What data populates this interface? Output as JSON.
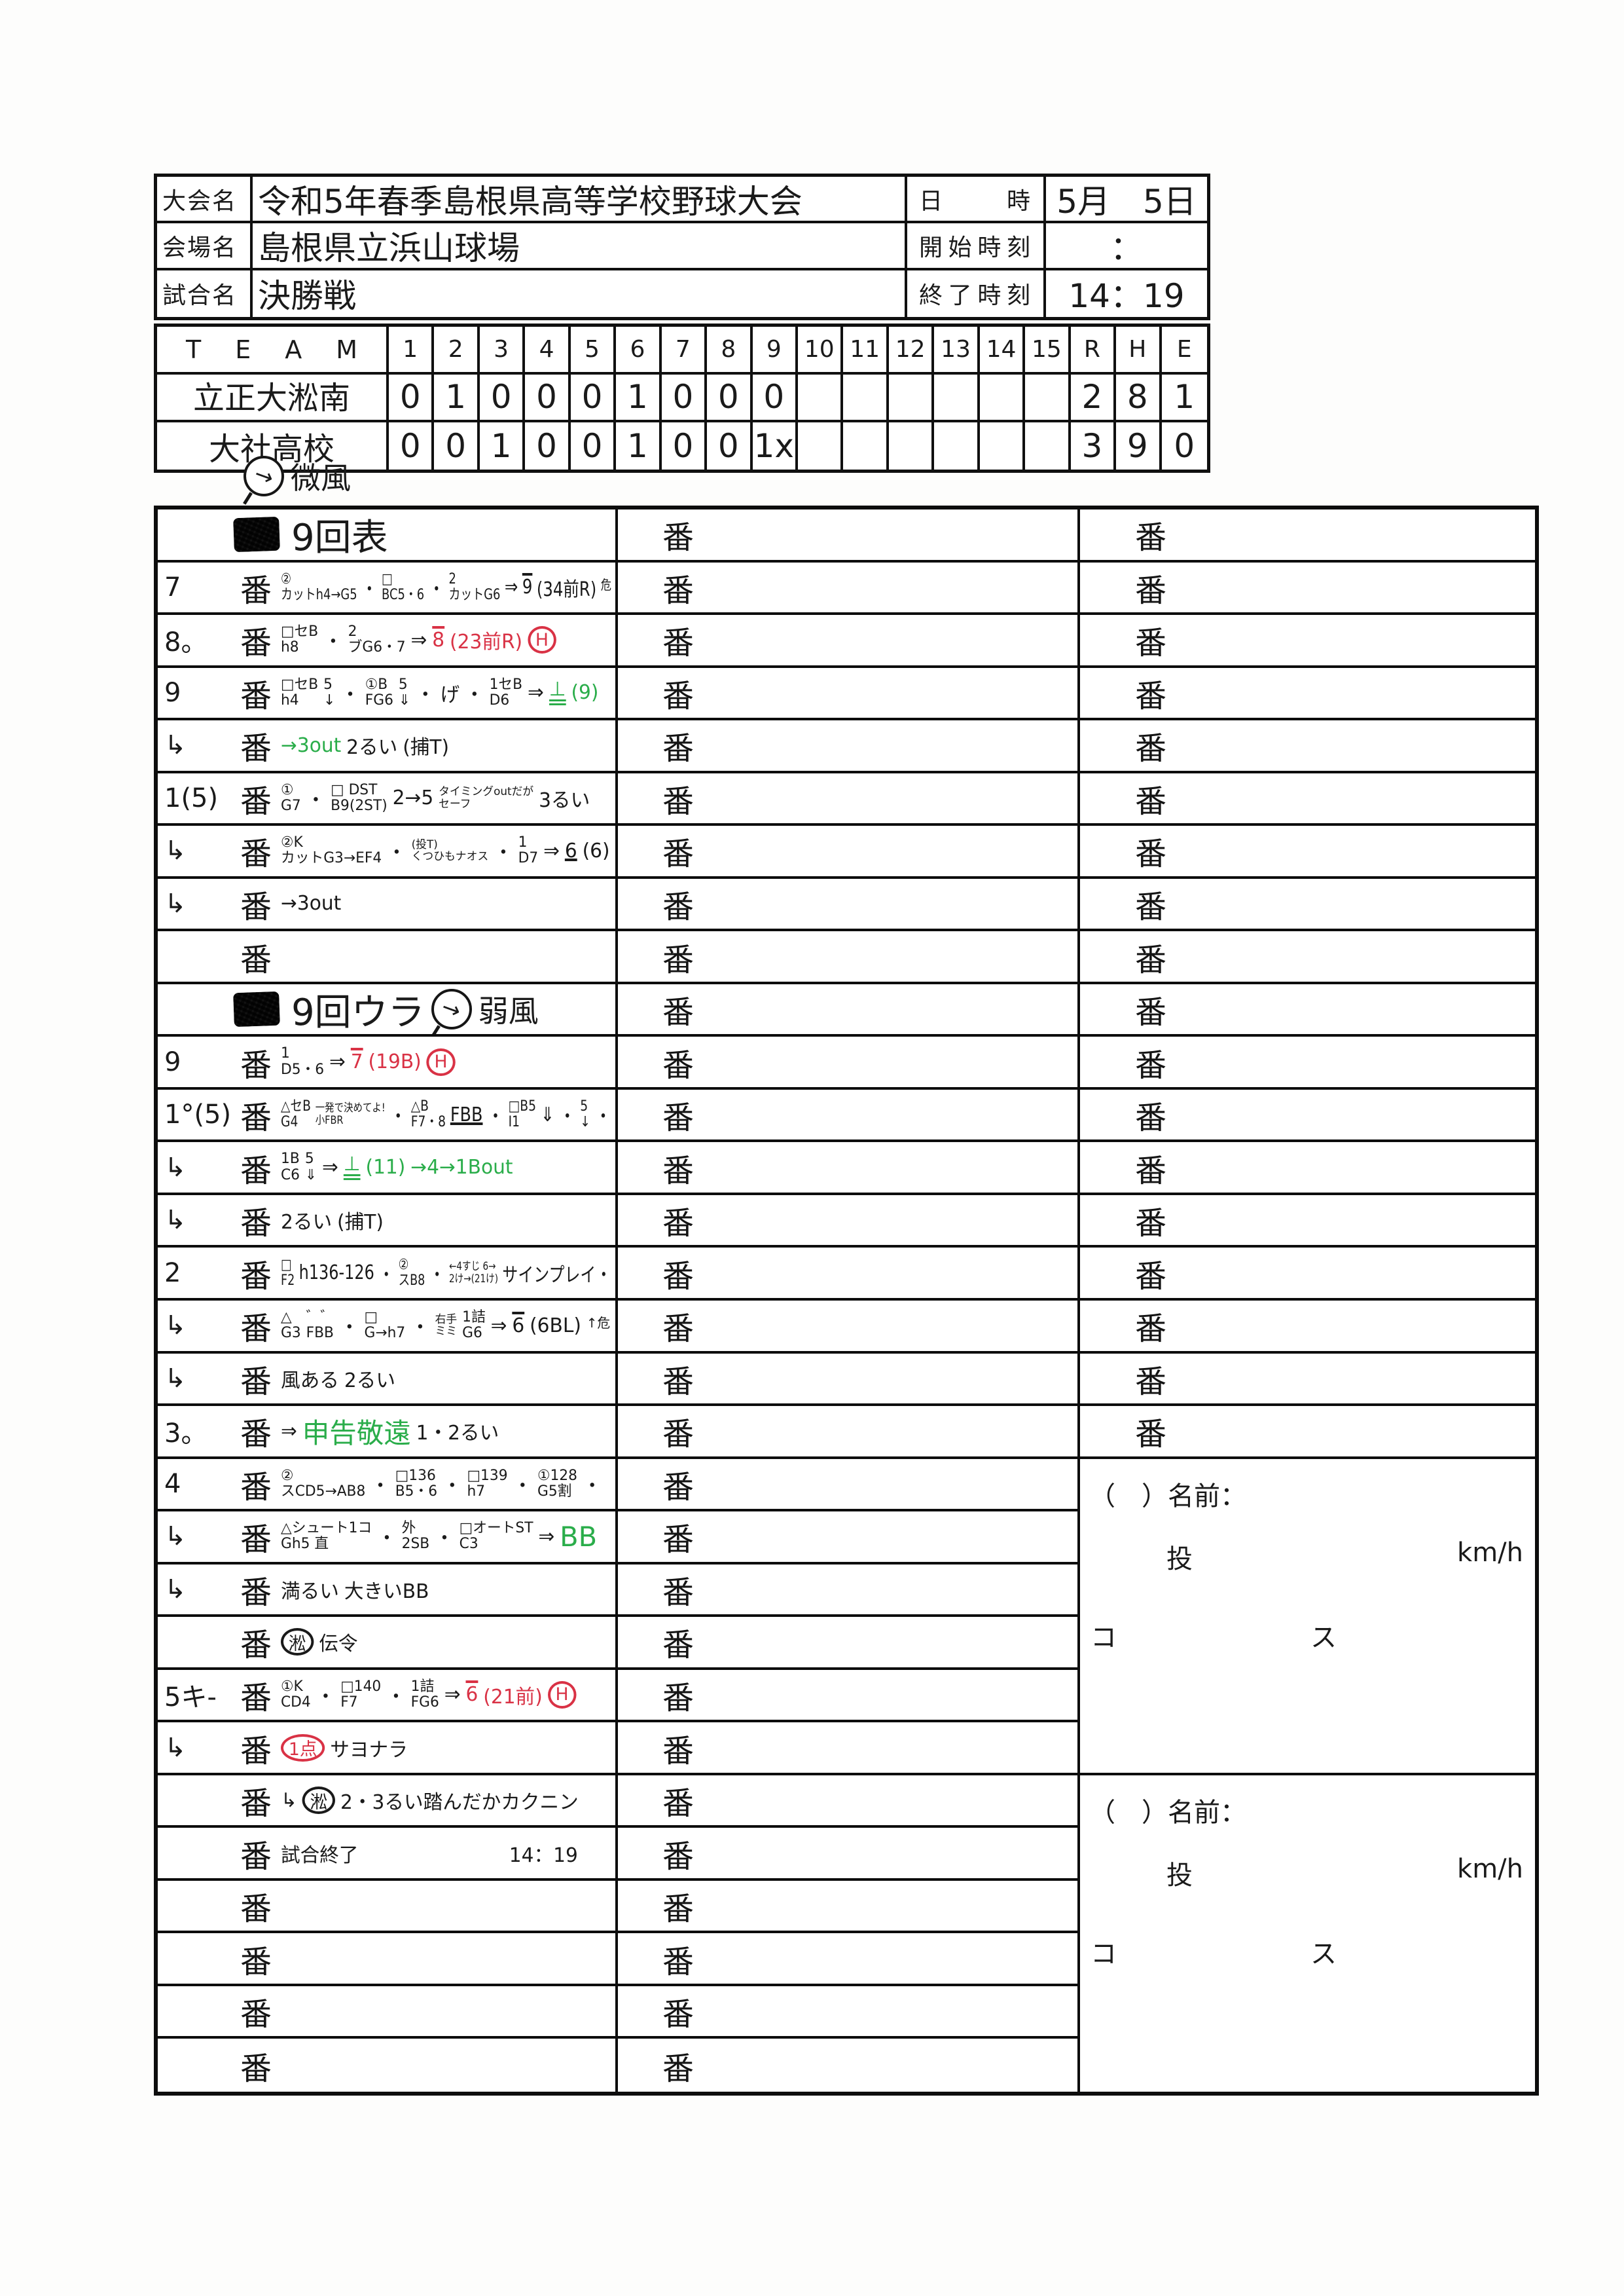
{
  "colors": {
    "red": "#d93245",
    "green": "#2aad4a",
    "ink": "#1a1a1a"
  },
  "labels": {
    "ban": "番"
  },
  "annotation": {
    "arrow": "→",
    "wind": "微風"
  },
  "info_table": {
    "rows": [
      {
        "label": "大会名",
        "value": "令和5年春季島根県高等学校野球大会",
        "label2": "日　　時",
        "value2": "5月　5日"
      },
      {
        "label": "会場名",
        "value": "島根県立浜山球場",
        "label2": "開始時刻",
        "value2": "："
      },
      {
        "label": "試合名",
        "value": "決勝戦",
        "label2": "終了時刻",
        "value2": "14：19"
      }
    ]
  },
  "score_table": {
    "team_header": "TEAM",
    "columns": [
      "1",
      "2",
      "3",
      "4",
      "5",
      "6",
      "7",
      "8",
      "9",
      "10",
      "11",
      "12",
      "13",
      "14",
      "15",
      "R",
      "H",
      "E"
    ],
    "teams": [
      {
        "name": "立正大淞南",
        "underline": true,
        "scores": [
          "0",
          "1",
          "0",
          "0",
          "0",
          "1",
          "0",
          "0",
          "0",
          "",
          "",
          "",
          "",
          "",
          "",
          "2",
          "8",
          "1"
        ]
      },
      {
        "name": "大社高校",
        "underline": false,
        "scores": [
          "0",
          "0",
          "1",
          "0",
          "0",
          "1",
          "0",
          "0",
          "1x",
          "",
          "",
          "",
          "",
          "",
          "",
          "3",
          "9",
          "0"
        ]
      }
    ]
  },
  "pitcher_block": {
    "name_line": "（　）名前：",
    "pitch": "投",
    "unit": "km/h",
    "course_left": "コ",
    "course_right": "ス"
  },
  "big_table": {
    "right_ban_rows": 18,
    "rows": [
      {
        "type": "sec",
        "title": "9回表",
        "wind": ""
      },
      {
        "n": "7",
        "segs": [
          {
            "top": "②",
            "bot": "カットh4→G5"
          },
          {
            "t": "・"
          },
          {
            "top": "□",
            "bot": "BC5・6"
          },
          {
            "t": "・"
          },
          {
            "top": "2",
            "bot": "カットG6"
          },
          {
            "t": "⇒"
          },
          {
            "t": "9",
            "bar": true
          },
          {
            "t": "(34前R)"
          },
          {
            "t": "危",
            "sup": true
          }
        ]
      },
      {
        "n": "8。",
        "segs": [
          {
            "top": "□セB",
            "bot": "h8"
          },
          {
            "t": "・"
          },
          {
            "top": "2",
            "bot": "ブG6・7"
          },
          {
            "t": "⇒"
          },
          {
            "t": "8",
            "c": "r",
            "bar": true
          },
          {
            "t": "(23前R)",
            "c": "r"
          },
          {
            "t": "H",
            "c": "r",
            "circ": true
          }
        ]
      },
      {
        "n": "9",
        "segs": [
          {
            "top": "□セB",
            "bot": "h4"
          },
          {
            "top": "5",
            "bot": "↓"
          },
          {
            "t": "・"
          },
          {
            "top": "①B",
            "bot": "FG6"
          },
          {
            "top": "5",
            "bot": "⇓"
          },
          {
            "t": "・"
          },
          {
            "t": "げ"
          },
          {
            "t": "・"
          },
          {
            "top": "1セB",
            "bot": "D6"
          },
          {
            "t": "⇒"
          },
          {
            "t": "⊥",
            "c": "g",
            "du": true
          },
          {
            "t": "(9)",
            "c": "g"
          }
        ]
      },
      {
        "n": "↳",
        "segs": [
          {
            "t": "→3out",
            "c": "g"
          },
          {
            "t": "2るい"
          },
          {
            "t": "(捕T)"
          }
        ]
      },
      {
        "n": "1(5)",
        "segs": [
          {
            "top": "①",
            "bot": "G7"
          },
          {
            "t": "・"
          },
          {
            "top": "□ DST",
            "bot": "B9(2ST)"
          },
          {
            "t": "2→5"
          },
          {
            "top": "タイミングoutだが",
            "bot": "セーフ",
            "sm": true
          },
          {
            "t": "3るい"
          }
        ]
      },
      {
        "n": "↳",
        "segs": [
          {
            "top": "②K",
            "bot": "カットG3→EF4"
          },
          {
            "t": "・"
          },
          {
            "top": "(投T)",
            "bot": "くつひもナオス",
            "sm": true
          },
          {
            "t": "・"
          },
          {
            "top": "1",
            "bot": "D7"
          },
          {
            "t": "⇒"
          },
          {
            "t": "6",
            "und": true
          },
          {
            "t": "(6)"
          }
        ]
      },
      {
        "n": "↳",
        "segs": [
          {
            "t": "→3out"
          }
        ]
      },
      {
        "n": "",
        "segs": []
      },
      {
        "type": "sec",
        "title": "9回ウラ",
        "wind": "弱風"
      },
      {
        "n": "9",
        "segs": [
          {
            "top": "1",
            "bot": "D5・6"
          },
          {
            "t": "⇒"
          },
          {
            "t": "7",
            "c": "r",
            "bar": true
          },
          {
            "t": "(19B)",
            "c": "r"
          },
          {
            "t": "H",
            "c": "r",
            "circ": true
          }
        ]
      },
      {
        "n": "1°(5)",
        "segs": [
          {
            "top": "△セB",
            "bot": "G4"
          },
          {
            "top": "一発で決めてよ!",
            "bot": "小FBR",
            "sm": true
          },
          {
            "t": "・"
          },
          {
            "top": "△B",
            "bot": "F7・8"
          },
          {
            "t": "FBB",
            "und": true
          },
          {
            "t": "・"
          },
          {
            "top": "□B5",
            "bot": "I1"
          },
          {
            "t": "⇓"
          },
          {
            "t": "・"
          },
          {
            "top": "5",
            "bot": "↓"
          },
          {
            "t": "・"
          }
        ]
      },
      {
        "n": "↳",
        "segs": [
          {
            "top": "1B",
            "bot": "C6"
          },
          {
            "top": "5",
            "bot": "⇓"
          },
          {
            "t": "⇒"
          },
          {
            "t": "⊥",
            "c": "g",
            "du": true
          },
          {
            "t": "(11)",
            "c": "g"
          },
          {
            "t": "→4→1Bout",
            "c": "g"
          }
        ]
      },
      {
        "n": "↳",
        "segs": [
          {
            "t": "2るい"
          },
          {
            "t": "(捕T)"
          }
        ]
      },
      {
        "n": "2",
        "segs": [
          {
            "top": "□",
            "bot": "F2"
          },
          {
            "t": "h136-126"
          },
          {
            "t": "・"
          },
          {
            "top": "②",
            "bot": "スB8"
          },
          {
            "t": "・"
          },
          {
            "top": "←4すじ 6→",
            "bot": "2け→(21け)",
            "sm": true
          },
          {
            "t": "サインプレイ・"
          }
        ]
      },
      {
        "n": "↳",
        "segs": [
          {
            "top": "△",
            "bot": "G3"
          },
          {
            "top": "゛゛",
            "bot": "FBB"
          },
          {
            "t": "・"
          },
          {
            "top": "□",
            "bot": "G→h7"
          },
          {
            "t": "・"
          },
          {
            "top": "右手",
            "bot": "ミミ",
            "sm": true
          },
          {
            "top": "1詰",
            "bot": "G6"
          },
          {
            "t": "⇒"
          },
          {
            "t": "6",
            "bar": true
          },
          {
            "t": "(6BL)"
          },
          {
            "t": "↑危",
            "sup": true
          }
        ]
      },
      {
        "n": "↳",
        "segs": [
          {
            "t": "風ある"
          },
          {
            "t": "2るい"
          }
        ]
      },
      {
        "n": "3。",
        "segs": [
          {
            "t": "⇒"
          },
          {
            "t": "申告敬遠",
            "c": "g",
            "big": true
          },
          {
            "t": "1・2るい"
          }
        ]
      },
      {
        "n": "4",
        "segs": [
          {
            "top": "②",
            "bot": "スCD5→AB8"
          },
          {
            "t": "・"
          },
          {
            "top": "□136",
            "bot": "B5・6"
          },
          {
            "t": "・"
          },
          {
            "top": "□139",
            "bot": "h7"
          },
          {
            "t": "・"
          },
          {
            "top": "①128",
            "bot": "G5割"
          },
          {
            "t": "・"
          }
        ]
      },
      {
        "n": "↳",
        "segs": [
          {
            "top": "△シュート1コ",
            "bot": "Gh5 直"
          },
          {
            "t": "・"
          },
          {
            "top": "外",
            "bot": "2SB"
          },
          {
            "t": "・"
          },
          {
            "top": "□オートST",
            "bot": "C3"
          },
          {
            "t": "⇒"
          },
          {
            "t": "BB",
            "c": "g",
            "big": true
          }
        ]
      },
      {
        "n": "↳",
        "segs": [
          {
            "t": "満るい"
          },
          {
            "t": "大きいBB"
          }
        ]
      },
      {
        "n": "",
        "segs": [
          {
            "t": "淞",
            "circ": true
          },
          {
            "t": "伝令"
          }
        ]
      },
      {
        "n": "5キ-",
        "segs": [
          {
            "top": "①K",
            "bot": "CD4"
          },
          {
            "t": "・"
          },
          {
            "top": "□140",
            "bot": "F7"
          },
          {
            "t": "・"
          },
          {
            "top": "1詰",
            "bot": "FG6"
          },
          {
            "t": "⇒"
          },
          {
            "t": "6",
            "c": "r",
            "bar": true
          },
          {
            "t": "(21前)",
            "c": "r"
          },
          {
            "t": "H",
            "c": "r",
            "circ": true
          }
        ]
      },
      {
        "n": "↳",
        "segs": [
          {
            "t": "1点",
            "c": "r",
            "circ": true
          },
          {
            "t": "サヨナラ"
          }
        ]
      },
      {
        "n": "",
        "segs": [
          {
            "t": "↳"
          },
          {
            "t": "淞",
            "circ": true
          },
          {
            "t": "2・3るい踏んだかカクニン"
          }
        ]
      },
      {
        "n": "",
        "segs": [
          {
            "t": "試合終了"
          },
          {
            "t": "14：19",
            "gap": true
          }
        ]
      },
      {
        "n": "",
        "segs": []
      },
      {
        "n": "",
        "segs": []
      },
      {
        "n": "",
        "segs": []
      },
      {
        "n": "",
        "segs": []
      }
    ]
  }
}
